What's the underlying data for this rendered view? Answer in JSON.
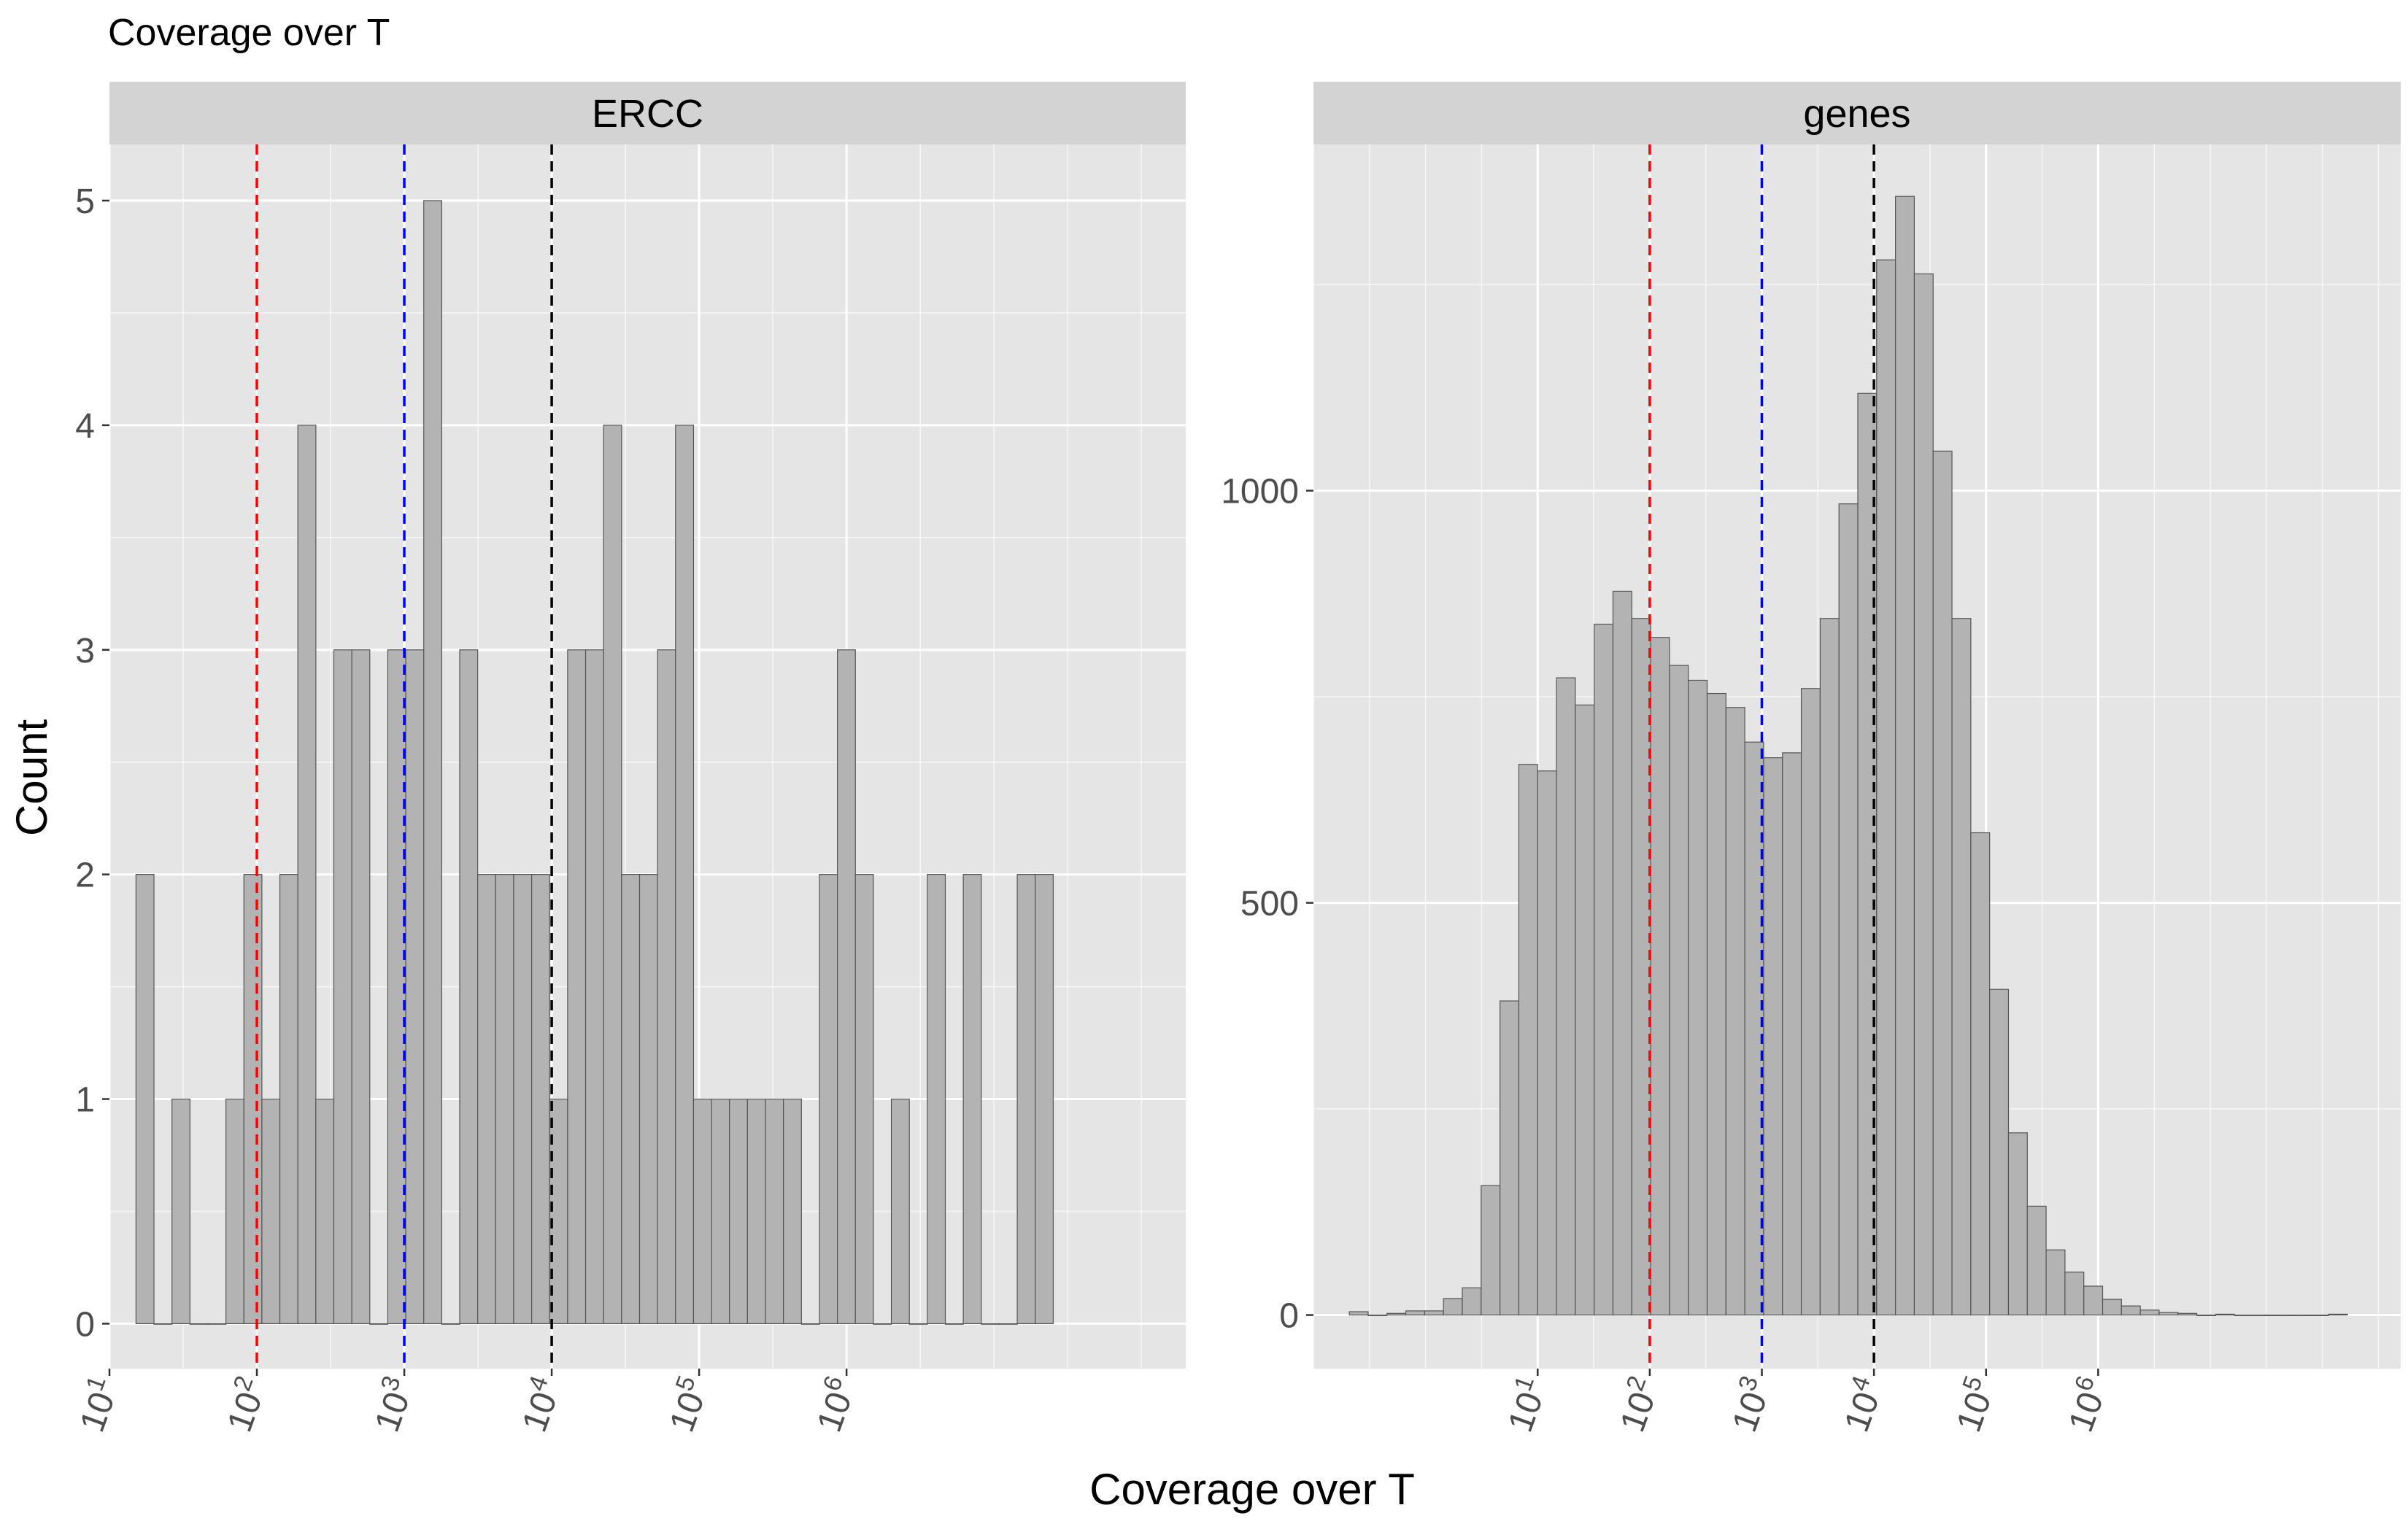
{
  "figure": {
    "title": "Coverage over T",
    "xlabel": "Coverage over T",
    "ylabel": "Count"
  },
  "colors": {
    "panel_bg": "#e5e5e5",
    "strip_bg": "#d3d3d3",
    "grid_major": "#ffffff",
    "bar_fill": "#b3b3b3",
    "bar_stroke": "#555555",
    "line_red": "#ff0000",
    "line_blue": "#0000ff",
    "line_black": "#000000",
    "text": "#000000",
    "tick_text": "#4d4d4d"
  },
  "chart_data": [
    {
      "type": "bar",
      "panel": "ERCC",
      "x_scale": "log10",
      "xlim": [
        10,
        200000000
      ],
      "ylim": [
        -0.2,
        5.25
      ],
      "yticks": [
        0,
        1,
        2,
        3,
        4,
        5
      ],
      "ytick_labels": [
        "0",
        "1",
        "2",
        "3",
        "4",
        "5"
      ],
      "xticks": [
        10,
        100,
        1000,
        10000,
        100000,
        1000000
      ],
      "xtick_labels": [
        {
          "base": "10",
          "exp": "1"
        },
        {
          "base": "10",
          "exp": "2"
        },
        {
          "base": "10",
          "exp": "3"
        },
        {
          "base": "10",
          "exp": "4"
        },
        {
          "base": "10",
          "exp": "5"
        },
        {
          "base": "10",
          "exp": "6"
        }
      ],
      "bin_start_log10": 1.18,
      "bin_width_log10": 0.122,
      "values": [
        2,
        0,
        1,
        0,
        0,
        1,
        2,
        1,
        2,
        4,
        1,
        3,
        3,
        0,
        3,
        3,
        5,
        0,
        3,
        2,
        2,
        2,
        2,
        1,
        3,
        3,
        4,
        2,
        2,
        3,
        4,
        1,
        1,
        1,
        1,
        1,
        1,
        0,
        2,
        3,
        2,
        0,
        1,
        0,
        2,
        0,
        2,
        0,
        0,
        2,
        2
      ],
      "vlines": [
        {
          "x": 100,
          "color": "red"
        },
        {
          "x": 1000,
          "color": "blue"
        },
        {
          "x": 10000,
          "color": "black"
        }
      ]
    },
    {
      "type": "bar",
      "panel": "genes",
      "x_scale": "log10",
      "xlim": [
        0.1,
        500000000
      ],
      "ylim": [
        -65,
        1420
      ],
      "yticks": [
        0,
        500,
        1000
      ],
      "ytick_labels": [
        "0",
        "500",
        "1000"
      ],
      "xticks": [
        10,
        100,
        1000,
        10000,
        100000,
        1000000
      ],
      "xtick_labels": [
        {
          "base": "10",
          "exp": "1"
        },
        {
          "base": "10",
          "exp": "2"
        },
        {
          "base": "10",
          "exp": "3"
        },
        {
          "base": "10",
          "exp": "4"
        },
        {
          "base": "10",
          "exp": "5"
        },
        {
          "base": "10",
          "exp": "6"
        }
      ],
      "bin_start_log10": -0.68,
      "bin_width_log10": 0.168,
      "values": [
        4,
        0,
        2,
        5,
        5,
        20,
        33,
        157,
        381,
        668,
        660,
        773,
        740,
        838,
        878,
        845,
        822,
        788,
        770,
        754,
        737,
        695,
        676,
        682,
        760,
        845,
        984,
        1118,
        1280,
        1357,
        1263,
        1048,
        845,
        585,
        395,
        221,
        132,
        79,
        52,
        35,
        19,
        11,
        6,
        3,
        2,
        0,
        1,
        0,
        0,
        0,
        0,
        0,
        1
      ],
      "vlines": [
        {
          "x": 100,
          "color": "red"
        },
        {
          "x": 1000,
          "color": "blue"
        },
        {
          "x": 10000,
          "color": "black"
        }
      ]
    }
  ]
}
